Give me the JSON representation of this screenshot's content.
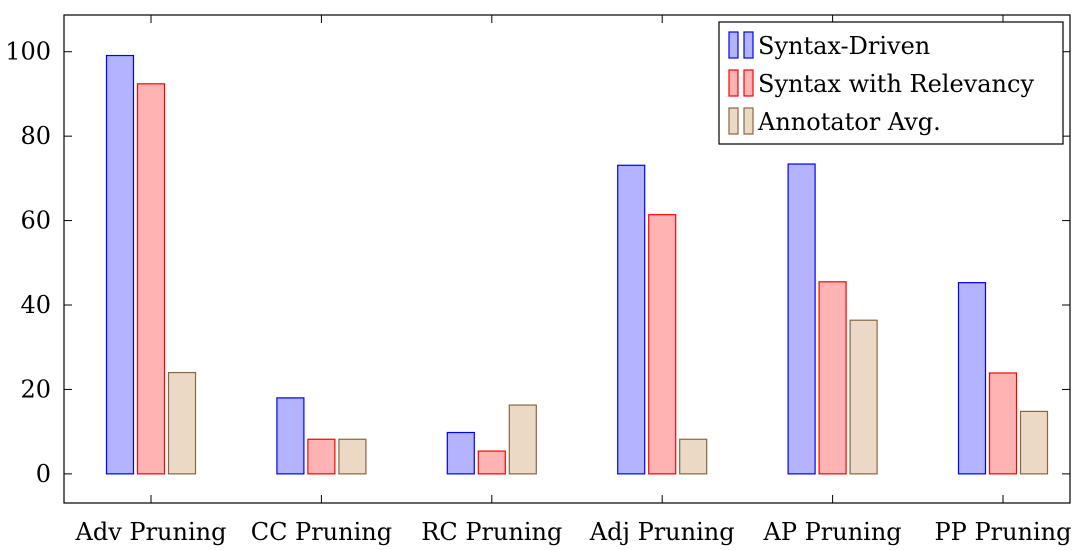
{
  "chart_data": {
    "type": "bar",
    "categories": [
      "Adv Pruning",
      "CC Pruning",
      "RC Pruning",
      "Adj Pruning",
      "AP Pruning",
      "PP Pruning"
    ],
    "series": [
      {
        "name": "Syntax-Driven",
        "values": [
          99.1,
          18.0,
          9.8,
          73.1,
          73.4,
          45.3
        ],
        "fill": "#b3b3ff",
        "stroke": "#0000ff"
      },
      {
        "name": "Syntax with Relevancy",
        "values": [
          92.4,
          8.2,
          5.4,
          61.4,
          45.5,
          23.9
        ],
        "fill": "#ffb3b3",
        "stroke": "#ff0000"
      },
      {
        "name": "Annotator Avg.",
        "values": [
          24.0,
          8.2,
          16.3,
          8.2,
          36.4,
          14.8
        ],
        "fill": "#ebd9c6",
        "stroke": "#8b6640"
      }
    ],
    "xlabel": "",
    "ylabel": "",
    "ylim": [
      -6.9,
      108.7
    ],
    "yticks": [
      0,
      20,
      40,
      60,
      80,
      100
    ],
    "grid": false,
    "legend_position": "top-right"
  }
}
